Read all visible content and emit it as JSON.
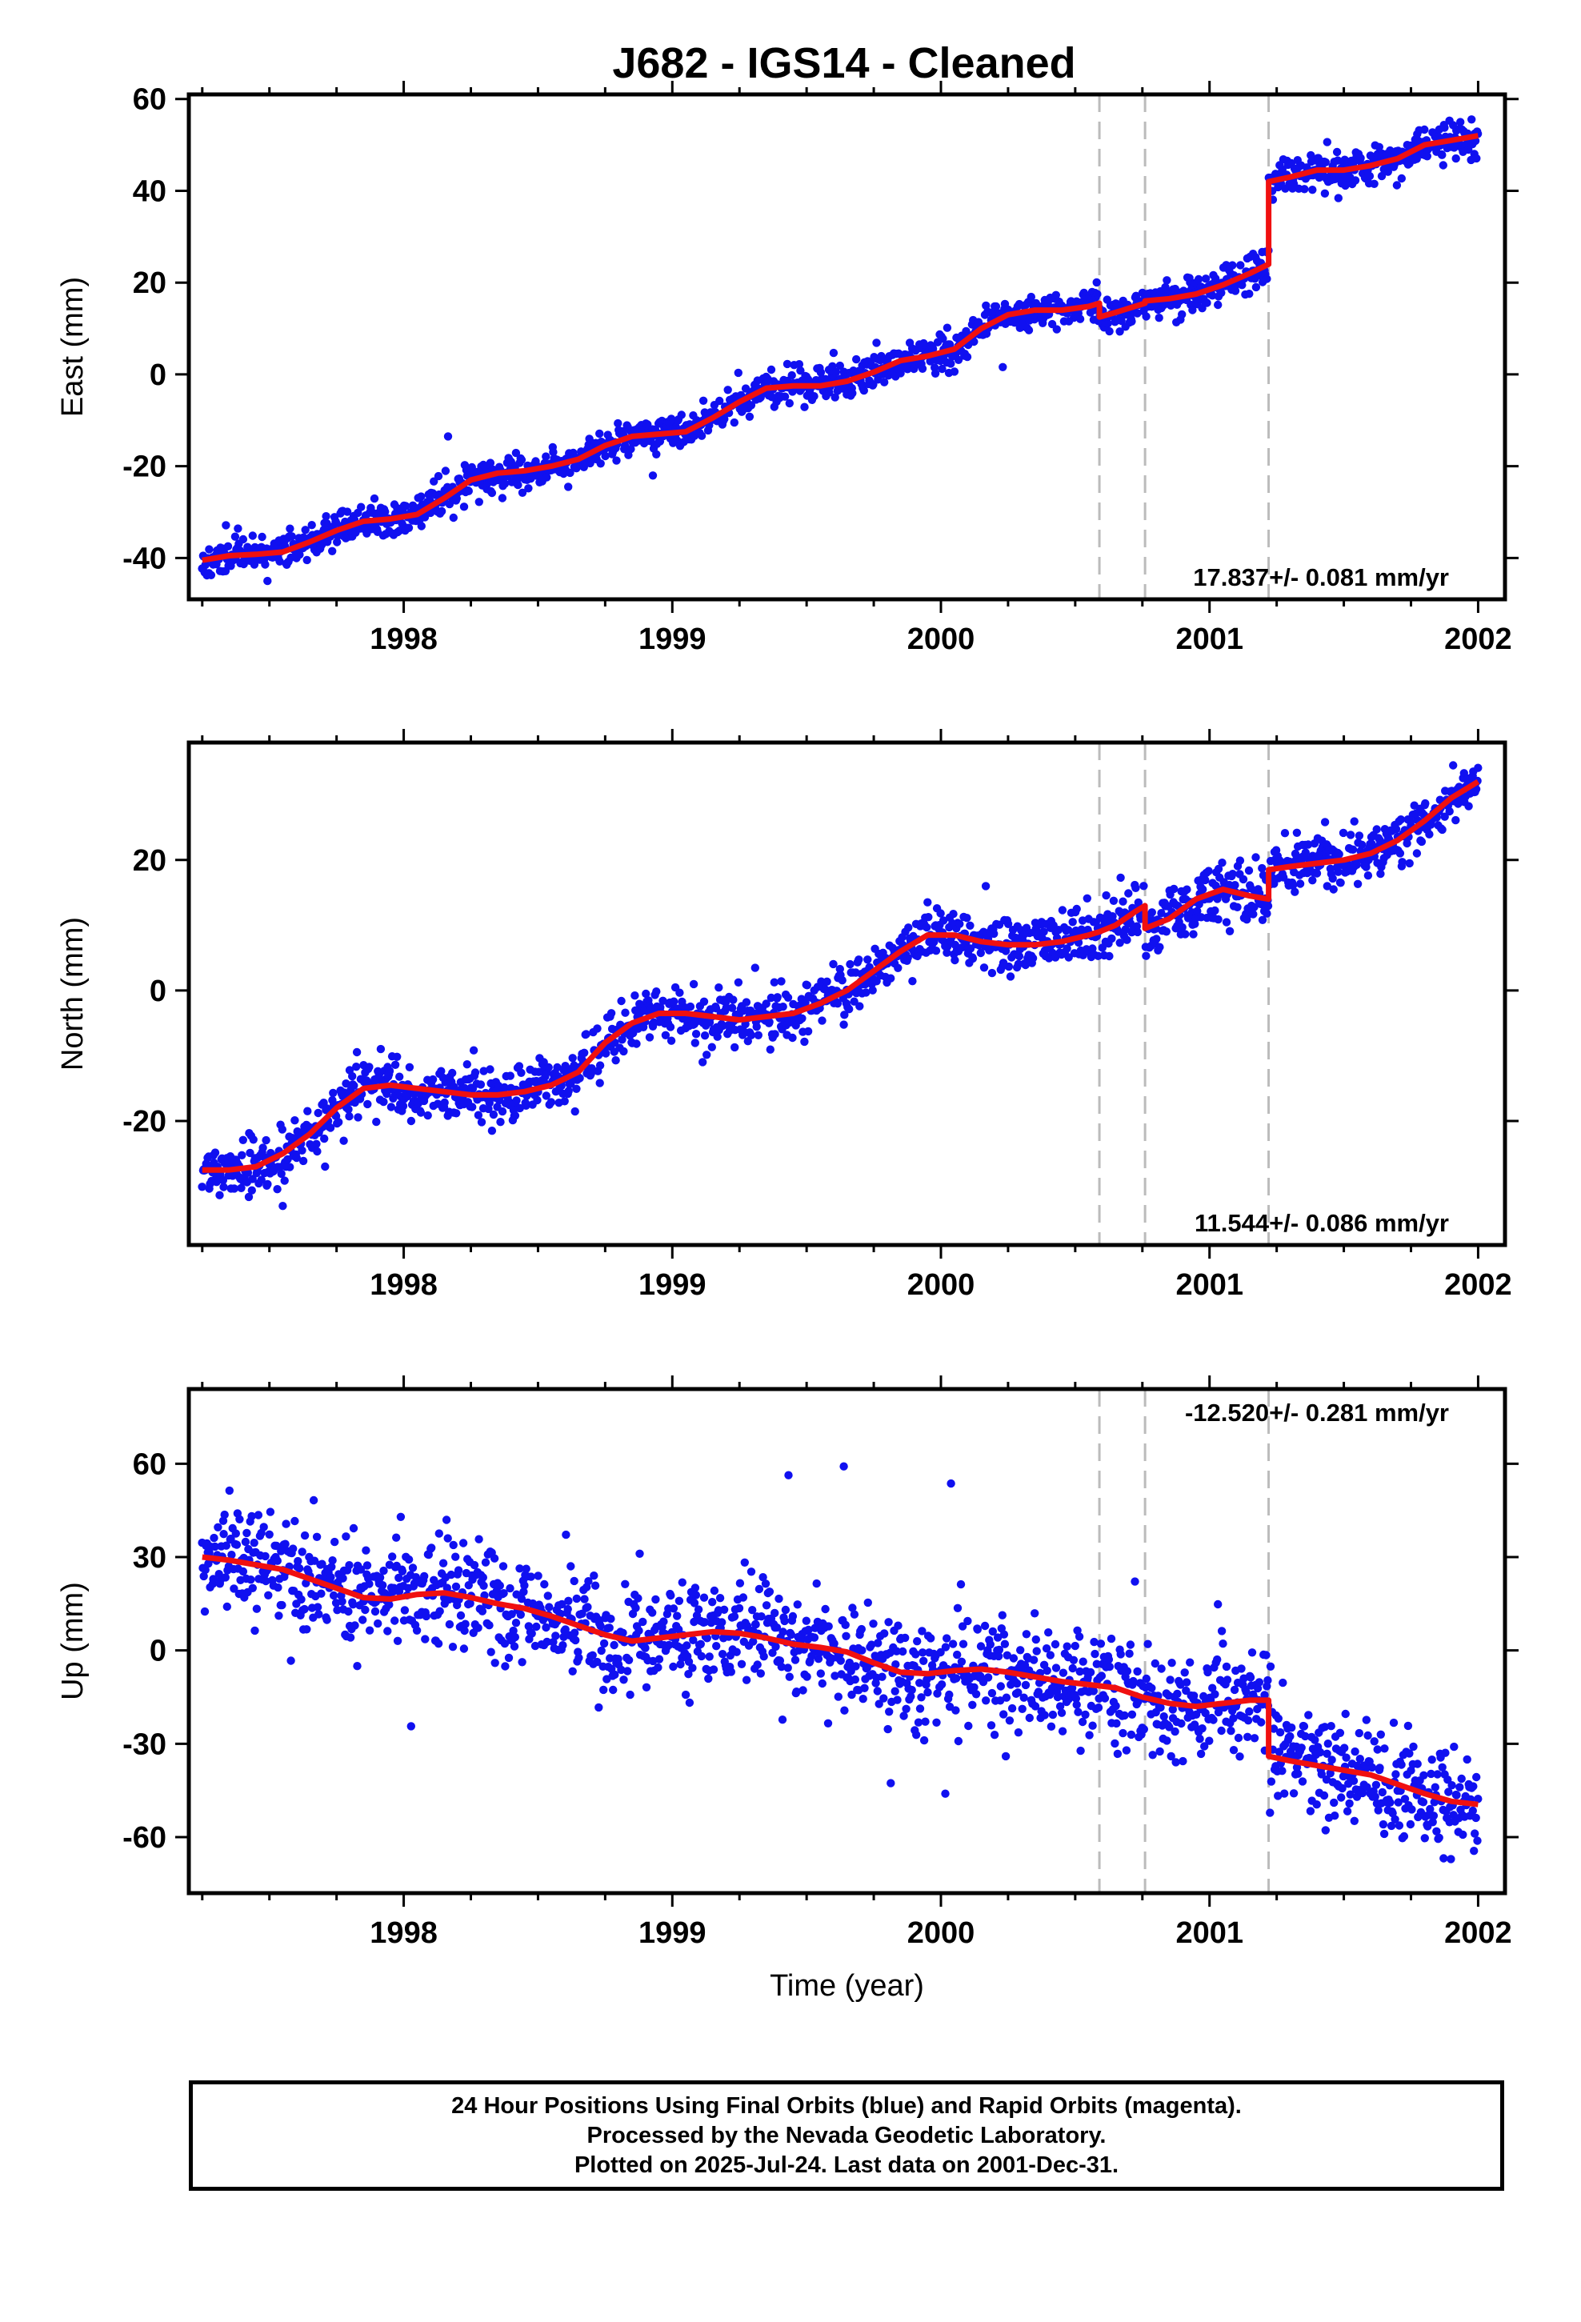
{
  "title": "J682  - IGS14 - Cleaned",
  "colors": {
    "data": "#1010f0",
    "model": "#f01010",
    "discontinuity": "#bbbbbb",
    "axis": "#000000"
  },
  "chart_data": [
    {
      "type": "scatter",
      "name": "east",
      "ylabel": "East (mm)",
      "xlabel": "",
      "xlim": [
        1997.2,
        2002.1
      ],
      "ylim": [
        -49,
        61
      ],
      "xticks": [
        1998,
        1999,
        2000,
        2001,
        2002
      ],
      "yticks": [
        -40,
        -20,
        0,
        20,
        40,
        60
      ],
      "rate_text": "17.837+/- 0.081 mm/yr",
      "rate_position": "bottom-right",
      "discontinuities": [
        2000.59,
        2000.76,
        2001.22
      ],
      "model_line": {
        "x": [
          1997.25,
          1997.35,
          1997.45,
          1997.55,
          1997.65,
          1997.75,
          1997.85,
          1997.95,
          1998.05,
          1998.15,
          1998.25,
          1998.35,
          1998.45,
          1998.55,
          1998.65,
          1998.75,
          1998.85,
          1998.95,
          1999.05,
          1999.15,
          1999.25,
          1999.35,
          1999.45,
          1999.55,
          1999.65,
          1999.75,
          1999.85,
          1999.95,
          2000.05,
          2000.15,
          2000.25,
          2000.35,
          2000.45,
          2000.55,
          2000.59,
          2000.59,
          2000.65,
          2000.76,
          2000.76,
          2000.85,
          2000.95,
          2001.05,
          2001.15,
          2001.22,
          2001.22,
          2001.3,
          2001.4,
          2001.5,
          2001.6,
          2001.7,
          2001.8,
          2001.9,
          2002.0
        ],
        "y": [
          -40.5,
          -39.5,
          -39.2,
          -38.7,
          -36.5,
          -34,
          -32,
          -31.5,
          -30.5,
          -27,
          -23,
          -21.5,
          -21,
          -20,
          -18.5,
          -15.5,
          -13.5,
          -13,
          -12.5,
          -9.5,
          -6,
          -3,
          -2.5,
          -2.5,
          -1.5,
          0.5,
          3,
          4,
          5.5,
          10,
          13,
          14,
          14,
          14.8,
          15.5,
          12.5,
          13.5,
          15.5,
          16,
          16.5,
          17.5,
          19.5,
          22,
          24,
          42,
          43,
          44.5,
          44.5,
          45.5,
          47,
          50,
          51,
          52
        ]
      },
      "scatter_seed": 11,
      "scatter_spread": 1.9
    },
    {
      "type": "scatter",
      "name": "north",
      "ylabel": "North (mm)",
      "xlabel": "",
      "xlim": [
        1997.2,
        2002.1
      ],
      "ylim": [
        -39,
        38
      ],
      "xticks": [
        1998,
        1999,
        2000,
        2001,
        2002
      ],
      "yticks": [
        -20,
        0,
        20
      ],
      "rate_text": "11.544+/- 0.086 mm/yr",
      "rate_position": "bottom-right",
      "discontinuities": [
        2000.59,
        2000.76,
        2001.22
      ],
      "model_line": {
        "x": [
          1997.25,
          1997.35,
          1997.45,
          1997.55,
          1997.65,
          1997.75,
          1997.85,
          1997.95,
          1998.05,
          1998.15,
          1998.25,
          1998.35,
          1998.45,
          1998.55,
          1998.65,
          1998.75,
          1998.85,
          1998.95,
          1999.05,
          1999.15,
          1999.25,
          1999.35,
          1999.45,
          1999.55,
          1999.65,
          1999.75,
          1999.85,
          1999.95,
          2000.05,
          2000.15,
          2000.25,
          2000.35,
          2000.45,
          2000.55,
          2000.59,
          2000.65,
          2000.72,
          2000.76,
          2000.76,
          2000.85,
          2000.95,
          2001.05,
          2001.15,
          2001.22,
          2001.22,
          2001.3,
          2001.4,
          2001.5,
          2001.6,
          2001.7,
          2001.8,
          2001.9,
          2002.0
        ],
        "y": [
          -27.5,
          -27.5,
          -27,
          -25,
          -22,
          -18,
          -15,
          -14.5,
          -15,
          -15.5,
          -16,
          -16,
          -15.5,
          -14.5,
          -12.5,
          -8,
          -5,
          -3.5,
          -3.5,
          -4,
          -4.5,
          -4,
          -3.5,
          -2,
          0,
          3,
          6,
          8.5,
          8.5,
          7.5,
          7,
          7,
          7.5,
          8.5,
          9,
          10,
          12,
          13,
          9.5,
          11,
          14,
          15.5,
          14.5,
          14,
          18.5,
          19,
          19.5,
          20,
          21,
          23,
          26,
          29.5,
          32
        ]
      },
      "scatter_seed": 23,
      "scatter_spread": 2.0
    },
    {
      "type": "scatter",
      "name": "up",
      "ylabel": "Up (mm)",
      "xlabel": "Time (year)",
      "xlim": [
        1997.2,
        2002.1
      ],
      "ylim": [
        -78,
        84
      ],
      "xticks": [
        1998,
        1999,
        2000,
        2001,
        2002
      ],
      "yticks": [
        -60,
        -30,
        0,
        30,
        60
      ],
      "rate_text": "-12.520+/- 0.281 mm/yr",
      "rate_position": "top-right",
      "discontinuities": [
        2000.59,
        2000.76,
        2001.22
      ],
      "model_line": {
        "x": [
          1997.25,
          1997.35,
          1997.45,
          1997.55,
          1997.65,
          1997.75,
          1997.85,
          1997.95,
          1998.05,
          1998.15,
          1998.25,
          1998.35,
          1998.45,
          1998.55,
          1998.65,
          1998.75,
          1998.85,
          1998.95,
          1999.05,
          1999.15,
          1999.25,
          1999.35,
          1999.45,
          1999.55,
          1999.65,
          1999.75,
          1999.85,
          1999.95,
          2000.05,
          2000.15,
          2000.25,
          2000.35,
          2000.45,
          2000.55,
          2000.65,
          2000.75,
          2000.85,
          2000.95,
          2001.05,
          2001.15,
          2001.22,
          2001.22,
          2001.3,
          2001.4,
          2001.5,
          2001.6,
          2001.7,
          2001.8,
          2001.9,
          2002.0
        ],
        "y": [
          30,
          29,
          27.5,
          26,
          23,
          20,
          17,
          16.5,
          18,
          18.5,
          17,
          15,
          13.5,
          11,
          8,
          5,
          3,
          4,
          5,
          6,
          5.5,
          4,
          2,
          1,
          -0.5,
          -4,
          -7,
          -7.5,
          -6.5,
          -6,
          -7,
          -8.5,
          -10,
          -11,
          -12,
          -15,
          -17,
          -18,
          -17,
          -16,
          -16,
          -34,
          -35.5,
          -37,
          -38.5,
          -40,
          -43,
          -46,
          -48.5,
          -49.5
        ]
      },
      "scatter_seed": 37,
      "scatter_spread": 8.5
    }
  ],
  "footer": {
    "line1": "24 Hour Positions Using Final Orbits (blue) and Rapid Orbits (magenta).",
    "line2": "Processed by the Nevada Geodetic Laboratory.",
    "line3": "Plotted on 2025-Jul-24. Last data on 2001-Dec-31."
  }
}
